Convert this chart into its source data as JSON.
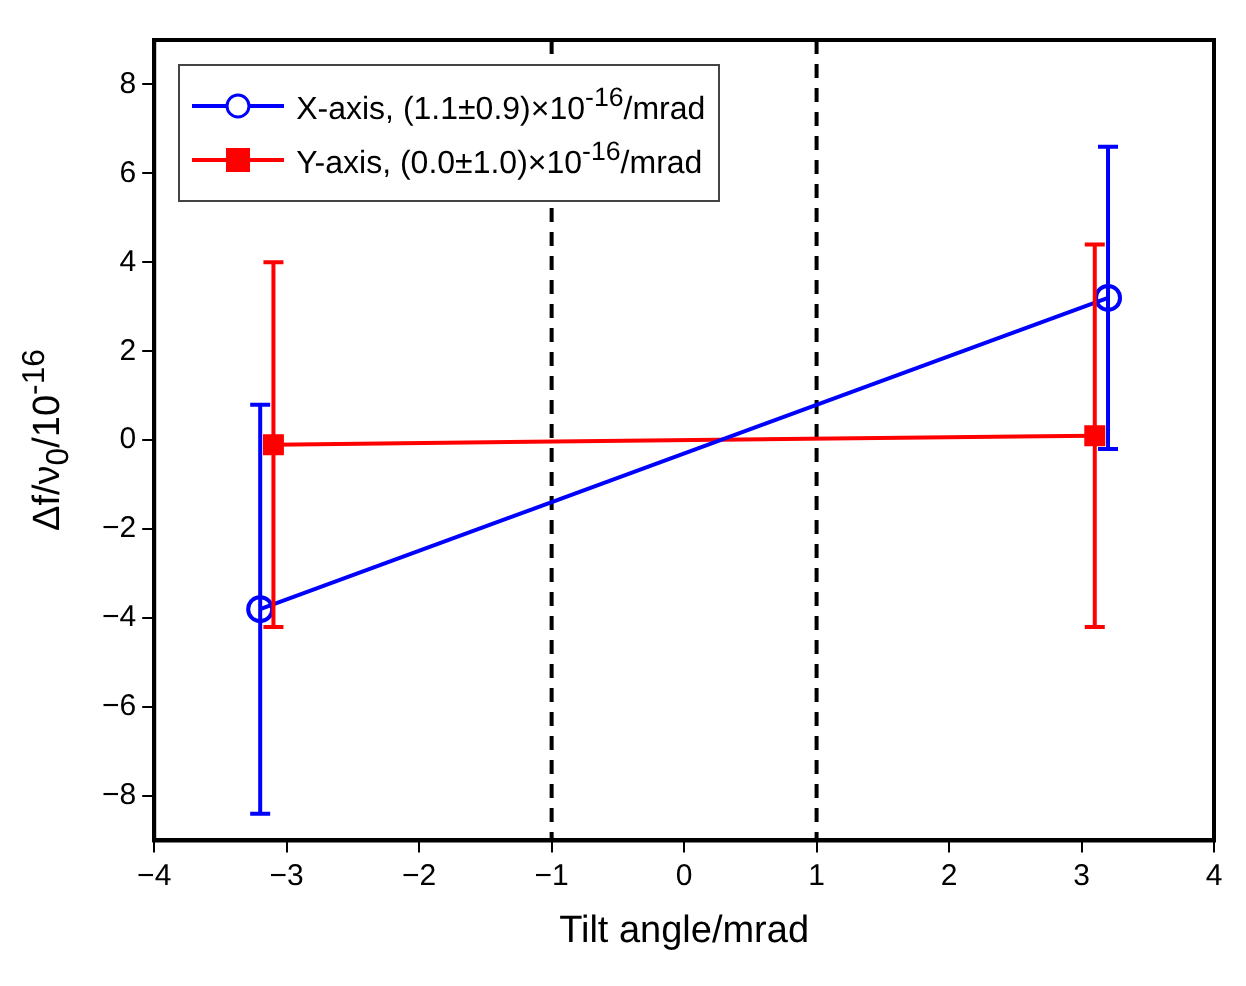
{
  "chart_data": {
    "type": "line",
    "xlabel": "Tilt angle/mrad",
    "ylabel": "Δf/ν$_{0}$/10$^{-16}$",
    "xlim": [
      -4,
      4
    ],
    "xticks": [
      -4,
      -3,
      -2,
      -1,
      0,
      1,
      2,
      3,
      4
    ],
    "ylim": [
      -9,
      9
    ],
    "yticks": [
      -8,
      -6,
      -4,
      -2,
      0,
      2,
      4,
      6,
      8
    ],
    "grid": false,
    "legend": "top left",
    "series": [
      {
        "name": "X-axis, (1.1±0.9)×10$^{-16}$/mrad",
        "color": "#0000ff",
        "marker": "circle",
        "x": [
          -3.2,
          3.2
        ],
        "values": [
          -3.8,
          3.2
        ],
        "errors": [
          [
            -8.4,
            0.8
          ],
          [
            -0.2,
            6.6
          ]
        ]
      },
      {
        "name": "Y-axis, (0.0±1.0)×10$^{-16}$/mrad",
        "color": "#ff0000",
        "marker": "square",
        "x": [
          -3.1,
          3.1
        ],
        "values": [
          -0.1,
          0.1
        ],
        "errors": [
          [
            -4.2,
            4.0
          ],
          [
            -4.2,
            4.4
          ]
        ]
      }
    ],
    "ref_lines": [
      {
        "axis": "x",
        "value": -1,
        "color": "#000000",
        "line_style": "dashed"
      },
      {
        "axis": "x",
        "value": 1,
        "color": "#000000",
        "line_style": "dashed"
      }
    ]
  }
}
